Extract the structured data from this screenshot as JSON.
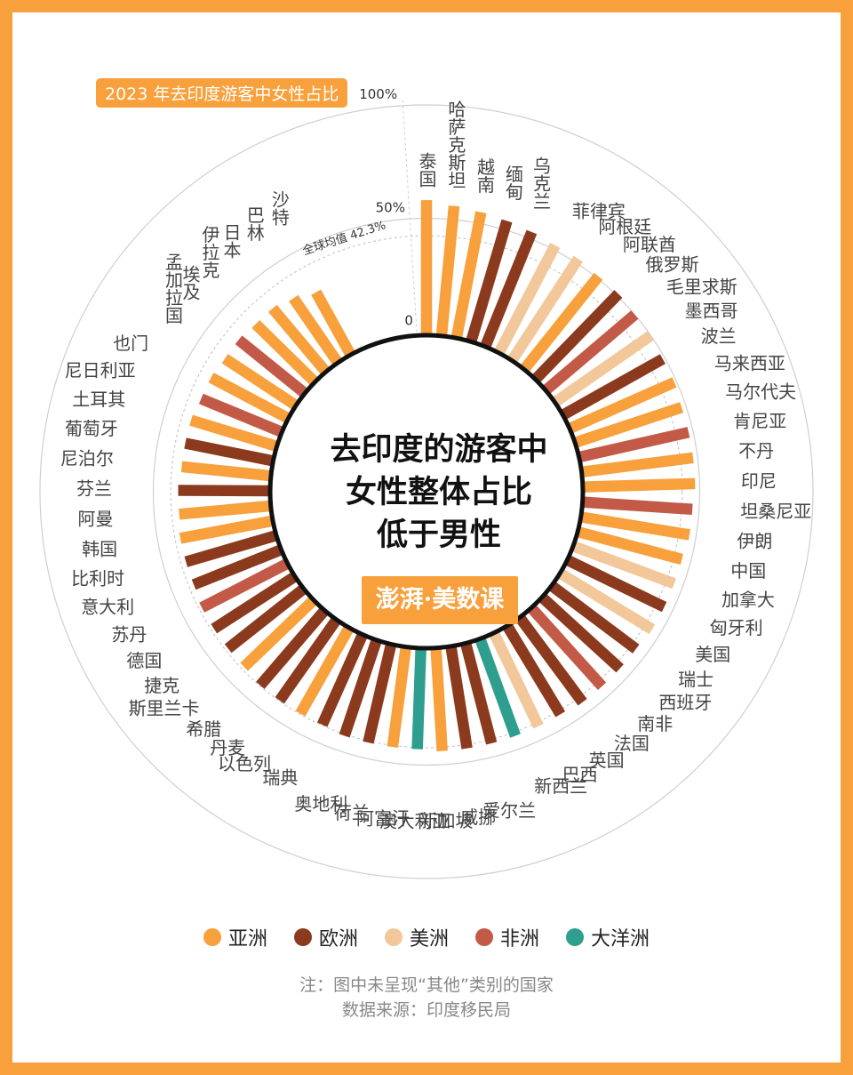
{
  "title": "2023 年去印度游客中女性占比",
  "center_title": [
    "去印度的游客中",
    "女性整体占比",
    "低于男性"
  ],
  "logo": "澎湃·美数课",
  "legend": [
    {
      "label": "亚洲",
      "color": "#F7A03C"
    },
    {
      "label": "欧洲",
      "color": "#8B3A1E"
    },
    {
      "label": "美洲",
      "color": "#F2C79A"
    },
    {
      "label": "非洲",
      "color": "#C25A47"
    },
    {
      "label": "大洋洲",
      "color": "#2E9E8F"
    }
  ],
  "notes": [
    "注：图中未呈现“其他”类别的国家",
    "数据来源：印度移民局"
  ],
  "chart_data": {
    "type": "bar",
    "subtype": "radial",
    "ylim": [
      0,
      100
    ],
    "tick_labels": [
      "0",
      "50%",
      "100%"
    ],
    "average": {
      "label": "全球均值 42.3%",
      "value": 42.3
    },
    "categories": [
      "泰国",
      "哈萨克斯坦",
      "越南",
      "缅甸",
      "乌克兰",
      "菲律宾",
      "阿根廷",
      "阿联酋",
      "俄罗斯",
      "毛里求斯",
      "墨西哥",
      "波兰",
      "马来西亚",
      "马尔代夫",
      "肯尼亚",
      "不丹",
      "印尼",
      "坦桑尼亚",
      "伊朗",
      "中国",
      "加拿大",
      "匈牙利",
      "美国",
      "瑞士",
      "西班牙",
      "南非",
      "法国",
      "英国",
      "巴西",
      "新西兰",
      "爱尔兰",
      "威挪",
      "新加坡",
      "澳大利亚",
      "阿富汗",
      "荷兰",
      "奥地利",
      "瑞典",
      "以色列",
      "丹麦",
      "希腊",
      "斯里兰卡",
      "捷克",
      "德国",
      "苏丹",
      "意大利",
      "比利时",
      "韩国",
      "阿曼",
      "芬兰",
      "尼泊尔",
      "葡萄牙",
      "土耳其",
      "尼日利亚",
      "也门",
      "孟加拉国",
      "埃及",
      "伊拉克",
      "日本",
      "巴林",
      "沙特"
    ],
    "regions": [
      "亚洲",
      "亚洲",
      "亚洲",
      "欧洲",
      "欧洲",
      "美洲",
      "美洲",
      "亚洲",
      "欧洲",
      "非洲",
      "美洲",
      "欧洲",
      "亚洲",
      "亚洲",
      "非洲",
      "亚洲",
      "亚洲",
      "非洲",
      "亚洲",
      "亚洲",
      "美洲",
      "欧洲",
      "美洲",
      "欧洲",
      "欧洲",
      "非洲",
      "欧洲",
      "欧洲",
      "美洲",
      "大洋洲",
      "欧洲",
      "欧洲",
      "亚洲",
      "大洋洲",
      "亚洲",
      "欧洲",
      "欧洲",
      "欧洲",
      "亚洲",
      "欧洲",
      "欧洲",
      "亚洲",
      "欧洲",
      "欧洲",
      "非洲",
      "欧洲",
      "欧洲",
      "亚洲",
      "亚洲",
      "欧洲",
      "亚洲",
      "欧洲",
      "亚洲",
      "非洲",
      "亚洲",
      "亚洲",
      "非洲",
      "亚洲",
      "亚洲",
      "亚洲",
      "亚洲"
    ],
    "values": [
      58,
      56,
      55,
      54,
      53,
      52,
      52,
      51,
      51,
      50,
      50,
      49,
      49,
      48,
      48,
      48,
      48,
      47,
      47,
      46,
      46,
      46,
      46,
      45,
      45,
      45,
      45,
      44,
      44,
      44,
      44,
      44,
      44,
      43,
      43,
      43,
      43,
      42,
      42,
      42,
      42,
      41,
      41,
      41,
      41,
      40,
      40,
      40,
      39,
      39,
      38,
      38,
      38,
      37,
      37,
      36,
      36,
      35,
      35,
      33,
      30
    ]
  }
}
